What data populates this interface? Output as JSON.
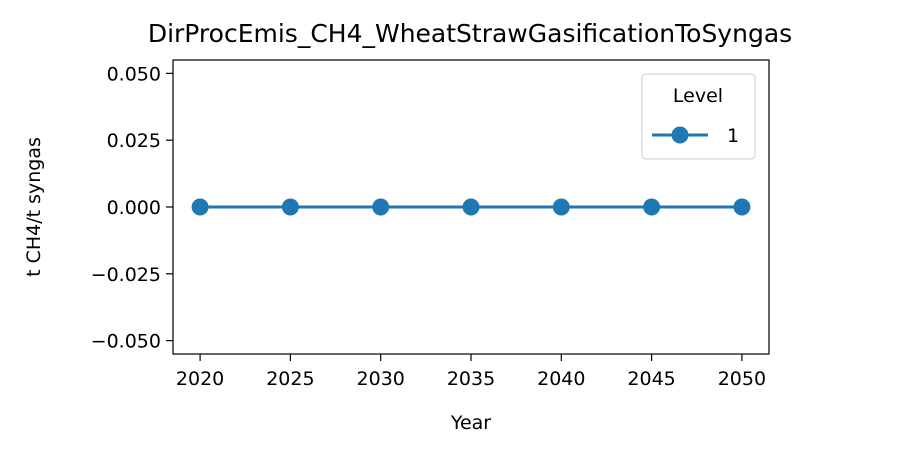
{
  "chart_data": {
    "type": "line",
    "title": "DirProcEmis_CH4_WheatStrawGasificationToSyngas",
    "xlabel": "Year",
    "ylabel": "t CH4/t syngas",
    "x": [
      2020,
      2025,
      2030,
      2035,
      2040,
      2045,
      2050
    ],
    "xticks": [
      "2020",
      "2025",
      "2030",
      "2035",
      "2040",
      "2045",
      "2050"
    ],
    "xlim": [
      2018.5,
      2051.5
    ],
    "ylim": [
      -0.055,
      0.055
    ],
    "yticks": [
      0.05,
      0.025,
      0.0,
      -0.025,
      -0.05
    ],
    "ytick_labels": [
      "0.050",
      "0.025",
      "0.000",
      "−0.025",
      "−0.050"
    ],
    "series": [
      {
        "name": "1",
        "color": "#1f77b4",
        "values": [
          0,
          0,
          0,
          0,
          0,
          0,
          0
        ]
      }
    ],
    "legend": {
      "title": "Level",
      "placement": "top-right"
    },
    "grid": false
  }
}
